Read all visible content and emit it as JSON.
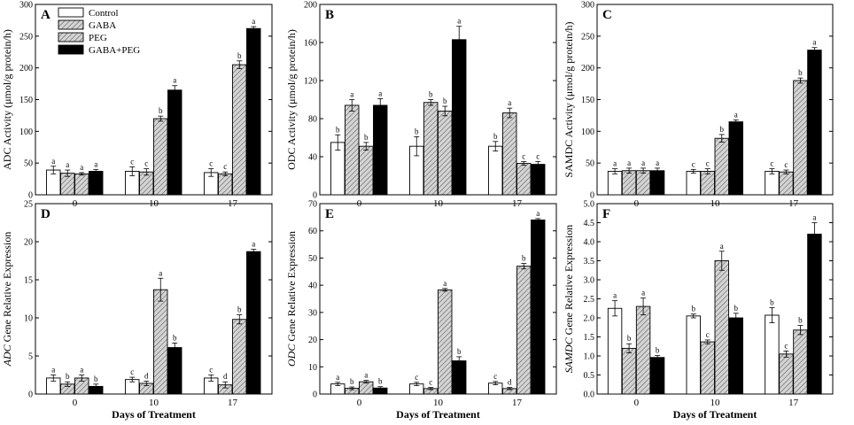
{
  "figure": {
    "x_categories": [
      "0",
      "10",
      "17"
    ],
    "colors": {
      "axis": "#000000",
      "black_bar": "#000000",
      "hatch_gray": "#c8c8c8",
      "hatch_line": "#555555",
      "white_bar": "#ffffff"
    }
  },
  "legend": {
    "position": "top-left of panel A",
    "entries": [
      "Control",
      "GABA",
      "PEG",
      "GABA+PEG"
    ]
  },
  "chart_data": [
    {
      "panel": "A",
      "type": "bar",
      "title": "",
      "xlabel": "",
      "ylabel": "ADC Activity (μmol/g protein/h)",
      "ylabel_italic": "",
      "ylabel_rest": "ADC Activity (μmol/g protein/h)",
      "categories": [
        "0",
        "10",
        "17"
      ],
      "ylim": [
        0,
        300
      ],
      "yticks": [
        0,
        50,
        100,
        150,
        200,
        250,
        300
      ],
      "ytick_labels": [
        "0",
        "50",
        "100",
        "150",
        "200",
        "250",
        "300"
      ],
      "series": [
        {
          "name": "Control",
          "values": [
            39,
            37,
            35
          ],
          "errors": [
            6,
            7,
            6
          ],
          "letters": [
            "a",
            "c",
            "c"
          ]
        },
        {
          "name": "GABA",
          "values": [
            34,
            36,
            33
          ],
          "errors": [
            5,
            5,
            3
          ],
          "letters": [
            "a",
            "c",
            "c"
          ]
        },
        {
          "name": "PEG",
          "values": [
            33,
            120,
            205
          ],
          "errors": [
            2,
            4,
            6
          ],
          "letters": [
            "a",
            "b",
            "b"
          ]
        },
        {
          "name": "GABA+PEG",
          "values": [
            37,
            165,
            262
          ],
          "errors": [
            3,
            7,
            3
          ],
          "letters": [
            "a",
            "a",
            "a"
          ]
        }
      ]
    },
    {
      "panel": "B",
      "type": "bar",
      "title": "",
      "xlabel": "",
      "ylabel": "ODC Activity (μmol/g protein/h)",
      "ylabel_italic": "",
      "ylabel_rest": "ODC Activity (μmol/g protein/h)",
      "categories": [
        "0",
        "10",
        "17"
      ],
      "ylim": [
        0,
        200
      ],
      "yticks": [
        0,
        40,
        80,
        120,
        160,
        200
      ],
      "ytick_labels": [
        "0",
        "40",
        "80",
        "120",
        "160",
        "200"
      ],
      "series": [
        {
          "name": "Control",
          "values": [
            55,
            51,
            51
          ],
          "errors": [
            8,
            10,
            5
          ],
          "letters": [
            "b",
            "b",
            "b"
          ]
        },
        {
          "name": "GABA",
          "values": [
            94,
            97,
            86
          ],
          "errors": [
            6,
            3,
            5
          ],
          "letters": [
            "a",
            "b",
            "a"
          ]
        },
        {
          "name": "PEG",
          "values": [
            51,
            88,
            33
          ],
          "errors": [
            4,
            5,
            2
          ],
          "letters": [
            "b",
            "b",
            "c"
          ]
        },
        {
          "name": "GABA+PEG",
          "values": [
            94,
            163,
            32
          ],
          "errors": [
            7,
            14,
            3
          ],
          "letters": [
            "a",
            "a",
            "c"
          ]
        }
      ]
    },
    {
      "panel": "C",
      "type": "bar",
      "title": "",
      "xlabel": "",
      "ylabel": "SAMDC Activity (μmol/g protein/h)",
      "ylabel_italic": "",
      "ylabel_rest": "SAMDC Activity (μmol/g protein/h)",
      "categories": [
        "0",
        "10",
        "17"
      ],
      "ylim": [
        0,
        300
      ],
      "yticks": [
        0,
        50,
        100,
        150,
        200,
        250,
        300
      ],
      "ytick_labels": [
        "0",
        "50",
        "100",
        "150",
        "200",
        "250",
        "300"
      ],
      "series": [
        {
          "name": "Control",
          "values": [
            37,
            37,
            37
          ],
          "errors": [
            4,
            3,
            4
          ],
          "letters": [
            "a",
            "c",
            "c"
          ]
        },
        {
          "name": "GABA",
          "values": [
            38,
            37,
            36
          ],
          "errors": [
            4,
            4,
            3
          ],
          "letters": [
            "a",
            "c",
            "c"
          ]
        },
        {
          "name": "PEG",
          "values": [
            38,
            89,
            180
          ],
          "errors": [
            4,
            6,
            4
          ],
          "letters": [
            "a",
            "b",
            "b"
          ]
        },
        {
          "name": "GABA+PEG",
          "values": [
            38,
            115,
            228
          ],
          "errors": [
            4,
            3,
            4
          ],
          "letters": [
            "a",
            "a",
            "a"
          ]
        }
      ]
    },
    {
      "panel": "D",
      "type": "bar",
      "title": "",
      "xlabel": "Days of Treatment",
      "ylabel": "ADC Gene Relative Expression",
      "ylabel_italic": "ADC",
      "ylabel_rest": " Gene Relative Expression",
      "categories": [
        "0",
        "10",
        "17"
      ],
      "ylim": [
        0,
        25
      ],
      "yticks": [
        0,
        5,
        10,
        15,
        20,
        25
      ],
      "ytick_labels": [
        "0",
        "5",
        "10",
        "15",
        "20",
        "25"
      ],
      "series": [
        {
          "name": "Control",
          "values": [
            2.1,
            1.9,
            2.1
          ],
          "errors": [
            0.4,
            0.3,
            0.4
          ],
          "letters": [
            "a",
            "c",
            "c"
          ]
        },
        {
          "name": "GABA",
          "values": [
            1.3,
            1.4,
            1.2
          ],
          "errors": [
            0.3,
            0.3,
            0.4
          ],
          "letters": [
            "b",
            "d",
            "d"
          ]
        },
        {
          "name": "PEG",
          "values": [
            2.1,
            13.7,
            9.8
          ],
          "errors": [
            0.4,
            1.5,
            0.6
          ],
          "letters": [
            "a",
            "a",
            "b"
          ]
        },
        {
          "name": "GABA+PEG",
          "values": [
            1.0,
            6.1,
            18.7
          ],
          "errors": [
            0.3,
            0.6,
            0.3
          ],
          "letters": [
            "b",
            "b",
            "a"
          ]
        }
      ]
    },
    {
      "panel": "E",
      "type": "bar",
      "title": "",
      "xlabel": "Days of Treatment",
      "ylabel": "ODC Gene Relative Expression",
      "ylabel_italic": "ODC",
      "ylabel_rest": " Gene Relative Expression",
      "categories": [
        "0",
        "10",
        "17"
      ],
      "ylim": [
        0,
        70
      ],
      "yticks": [
        0,
        10,
        20,
        30,
        40,
        50,
        60,
        70
      ],
      "ytick_labels": [
        "0",
        "10",
        "20",
        "30",
        "40",
        "50",
        "60",
        "70"
      ],
      "series": [
        {
          "name": "Control",
          "values": [
            3.7,
            3.7,
            4.0
          ],
          "errors": [
            0.6,
            0.6,
            0.6
          ],
          "letters": [
            "a",
            "c",
            "c"
          ]
        },
        {
          "name": "GABA",
          "values": [
            2.1,
            2.0,
            2.0
          ],
          "errors": [
            0.5,
            0.4,
            0.4
          ],
          "letters": [
            "b",
            "c",
            "d"
          ]
        },
        {
          "name": "PEG",
          "values": [
            4.5,
            38.3,
            47.0
          ],
          "errors": [
            0.5,
            0.5,
            1.0
          ],
          "letters": [
            "a",
            "a",
            "b"
          ]
        },
        {
          "name": "GABA+PEG",
          "values": [
            2.2,
            12.2,
            64.0
          ],
          "errors": [
            0.5,
            1.5,
            0.5
          ],
          "letters": [
            "b",
            "b",
            "a"
          ]
        }
      ]
    },
    {
      "panel": "F",
      "type": "bar",
      "title": "",
      "xlabel": "Days of Treatment",
      "ylabel": "SAMDC Gene Relative Expression",
      "ylabel_italic": "SAMDC",
      "ylabel_rest": " Gene Relative Expression",
      "categories": [
        "0",
        "10",
        "17"
      ],
      "ylim": [
        0,
        5.0
      ],
      "yticks": [
        0,
        0.5,
        1.0,
        1.5,
        2.0,
        2.5,
        3.0,
        3.5,
        4.0,
        4.5,
        5.0
      ],
      "ytick_labels": [
        "0.0",
        "0.5",
        "1.0",
        "1.5",
        "2.0",
        "2.5",
        "3.0",
        "3.5",
        "4.0",
        "4.5",
        "5.0"
      ],
      "series": [
        {
          "name": "Control",
          "values": [
            2.25,
            2.05,
            2.07
          ],
          "errors": [
            0.2,
            0.05,
            0.2
          ],
          "letters": [
            "a",
            "b",
            "b"
          ]
        },
        {
          "name": "GABA",
          "values": [
            1.2,
            1.37,
            1.05
          ],
          "errors": [
            0.12,
            0.05,
            0.08
          ],
          "letters": [
            "b",
            "c",
            "c"
          ]
        },
        {
          "name": "PEG",
          "values": [
            2.3,
            3.5,
            1.68
          ],
          "errors": [
            0.22,
            0.25,
            0.12
          ],
          "letters": [
            "a",
            "a",
            "b"
          ]
        },
        {
          "name": "GABA+PEG",
          "values": [
            0.96,
            2.0,
            4.2
          ],
          "errors": [
            0.05,
            0.12,
            0.3
          ],
          "letters": [
            "b",
            "b",
            "a"
          ]
        }
      ]
    }
  ]
}
